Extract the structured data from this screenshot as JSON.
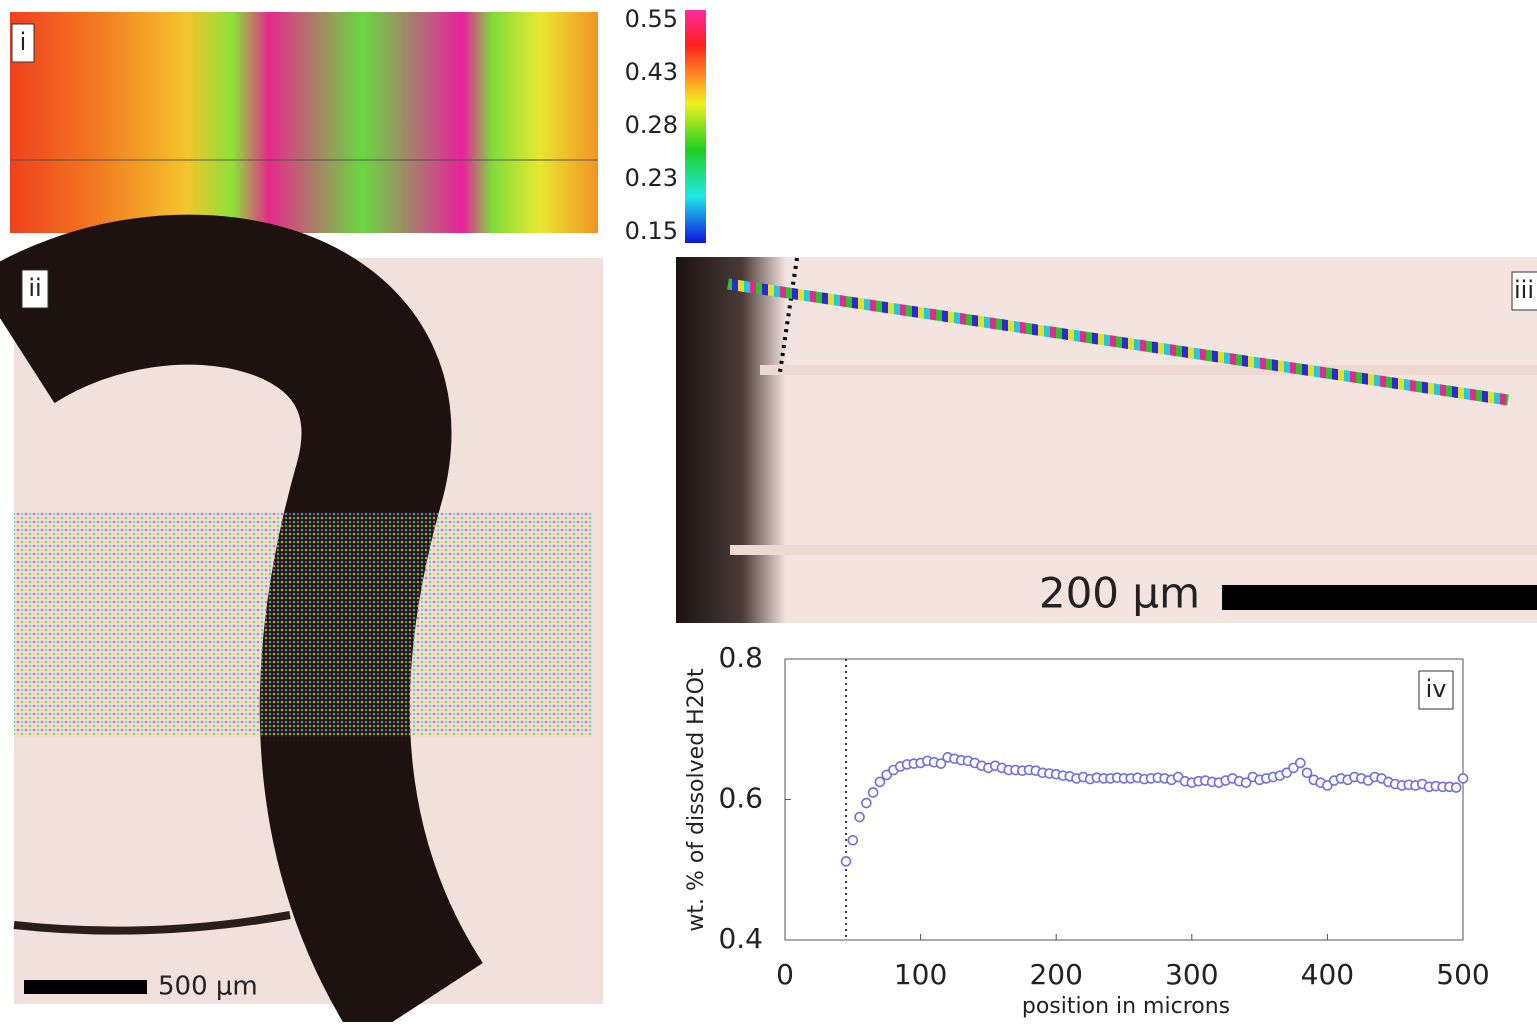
{
  "panels": {
    "i": {
      "label": "i",
      "colorbar_ticks": [
        0.55,
        0.43,
        0.28,
        0.23,
        0.15
      ]
    },
    "ii": {
      "label": "ii",
      "scale_bar": "500 μm"
    },
    "iii": {
      "label": "iii",
      "scale_bar": "200 μm"
    }
  },
  "chart_data": {
    "type": "scatter",
    "panel_label": "iv",
    "xlabel": "position in microns",
    "ylabel": "wt. % of dissolved H2Ot",
    "color": "#6e6ee6",
    "reference_line_x": 45,
    "xlim": [
      0,
      500
    ],
    "ylim": [
      0.4,
      0.8
    ],
    "xticks": [
      0,
      100,
      200,
      300,
      400,
      500
    ],
    "yticks": [
      0.4,
      0.6,
      0.8
    ],
    "x": [
      45,
      50,
      55,
      60,
      65,
      70,
      75,
      80,
      85,
      90,
      95,
      100,
      105,
      110,
      115,
      120,
      125,
      130,
      135,
      140,
      145,
      150,
      155,
      160,
      165,
      170,
      175,
      180,
      185,
      190,
      195,
      200,
      205,
      210,
      215,
      220,
      225,
      230,
      235,
      240,
      245,
      250,
      255,
      260,
      265,
      270,
      275,
      280,
      285,
      290,
      295,
      300,
      305,
      310,
      315,
      320,
      325,
      330,
      335,
      340,
      345,
      350,
      355,
      360,
      365,
      370,
      375,
      380,
      385,
      390,
      395,
      400,
      405,
      410,
      415,
      420,
      425,
      430,
      435,
      440,
      445,
      450,
      455,
      460,
      465,
      470,
      475,
      480,
      485,
      490,
      495,
      500
    ],
    "values": [
      0.512,
      0.542,
      0.575,
      0.595,
      0.61,
      0.625,
      0.635,
      0.642,
      0.647,
      0.65,
      0.651,
      0.652,
      0.655,
      0.653,
      0.651,
      0.66,
      0.658,
      0.656,
      0.655,
      0.652,
      0.648,
      0.645,
      0.648,
      0.645,
      0.642,
      0.642,
      0.641,
      0.642,
      0.641,
      0.638,
      0.637,
      0.636,
      0.634,
      0.633,
      0.63,
      0.632,
      0.629,
      0.631,
      0.63,
      0.63,
      0.631,
      0.63,
      0.63,
      0.631,
      0.629,
      0.63,
      0.631,
      0.63,
      0.628,
      0.632,
      0.626,
      0.624,
      0.626,
      0.627,
      0.625,
      0.624,
      0.627,
      0.63,
      0.626,
      0.624,
      0.632,
      0.628,
      0.63,
      0.632,
      0.634,
      0.638,
      0.645,
      0.652,
      0.638,
      0.628,
      0.624,
      0.62,
      0.627,
      0.63,
      0.628,
      0.632,
      0.63,
      0.627,
      0.632,
      0.63,
      0.625,
      0.622,
      0.62,
      0.621,
      0.62,
      0.622,
      0.618,
      0.619,
      0.618,
      0.618,
      0.617,
      0.63
    ]
  }
}
